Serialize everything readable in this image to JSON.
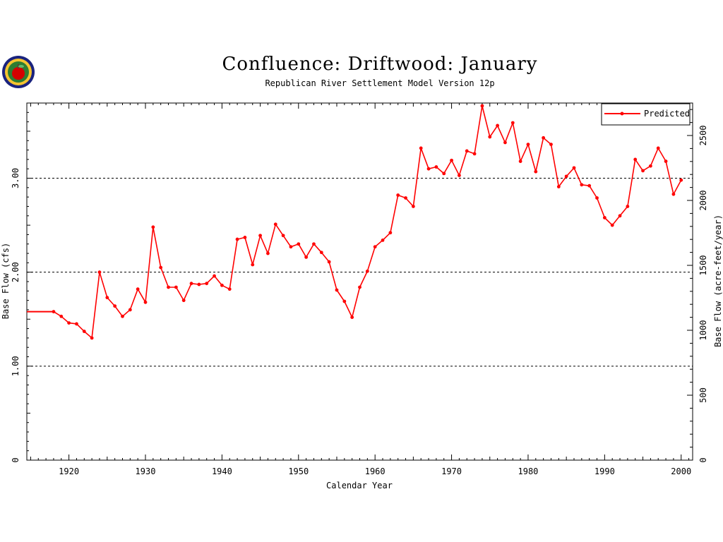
{
  "chart_data": {
    "type": "line",
    "title": "Confluence: Driftwood: January",
    "subtitle": "Republican River Settlement Model Version 12p",
    "xlabel": "Calendar Year",
    "ylabel_left": "Base Flow (cfs)",
    "ylabel_right": "Base Flow (acre-feet/year)",
    "xlim": [
      1914.5,
      2001.5
    ],
    "ylim": [
      0,
      3.8
    ],
    "y2lim": [
      0,
      2750
    ],
    "x_ticks": [
      1920,
      1930,
      1940,
      1950,
      1960,
      1970,
      1980,
      1990,
      2000
    ],
    "y_ticks_left": [
      0,
      1.0,
      2.0,
      3.0
    ],
    "y_tick_labels_left": [
      "0",
      "1.00",
      "2.00",
      "3.00"
    ],
    "y_ticks_right": [
      0,
      500,
      1000,
      1500,
      2000,
      2500
    ],
    "grid": "dashed horizontal at 1.00, 2.00, 3.00",
    "legend_position": "top-right",
    "series": [
      {
        "name": "Predicted",
        "color": "#ff0000",
        "x": [
          1918,
          1919,
          1920,
          1921,
          1922,
          1923,
          1924,
          1925,
          1926,
          1927,
          1928,
          1929,
          1930,
          1931,
          1932,
          1933,
          1934,
          1935,
          1936,
          1937,
          1938,
          1939,
          1940,
          1941,
          1942,
          1943,
          1944,
          1945,
          1946,
          1947,
          1948,
          1949,
          1950,
          1951,
          1952,
          1953,
          1954,
          1955,
          1956,
          1957,
          1958,
          1959,
          1960,
          1961,
          1962,
          1963,
          1964,
          1965,
          1966,
          1967,
          1968,
          1969,
          1970,
          1971,
          1972,
          1973,
          1974,
          1975,
          1976,
          1977,
          1978,
          1979,
          1980,
          1981,
          1982,
          1983,
          1984,
          1985,
          1986,
          1987,
          1988,
          1989,
          1990,
          1991,
          1992,
          1993,
          1994,
          1995,
          1996,
          1997,
          1998,
          1999,
          2000
        ],
        "y": [
          1.58,
          1.53,
          1.46,
          1.45,
          1.37,
          1.3,
          2.0,
          1.73,
          1.64,
          1.53,
          1.6,
          1.82,
          1.68,
          2.48,
          2.05,
          1.84,
          1.84,
          1.7,
          1.88,
          1.87,
          1.88,
          1.96,
          1.86,
          1.82,
          2.35,
          2.37,
          2.08,
          2.39,
          2.2,
          2.51,
          2.39,
          2.27,
          2.3,
          2.16,
          2.3,
          2.21,
          2.11,
          1.81,
          1.69,
          1.52,
          1.84,
          2.01,
          2.27,
          2.34,
          2.42,
          2.82,
          2.79,
          2.7,
          3.32,
          3.1,
          3.12,
          3.05,
          3.19,
          3.03,
          3.29,
          3.26,
          3.77,
          3.44,
          3.56,
          3.38,
          3.59,
          3.18,
          3.36,
          3.07,
          3.43,
          3.36,
          2.91,
          3.02,
          3.11,
          2.93,
          2.92,
          2.79,
          2.58,
          2.5,
          2.6,
          2.7,
          3.2,
          3.08,
          3.13,
          3.32,
          3.18,
          2.83,
          2.98
        ]
      }
    ],
    "lead_in": {
      "from_year": 1914.5,
      "to_year": 1918,
      "value": 1.58
    }
  }
}
